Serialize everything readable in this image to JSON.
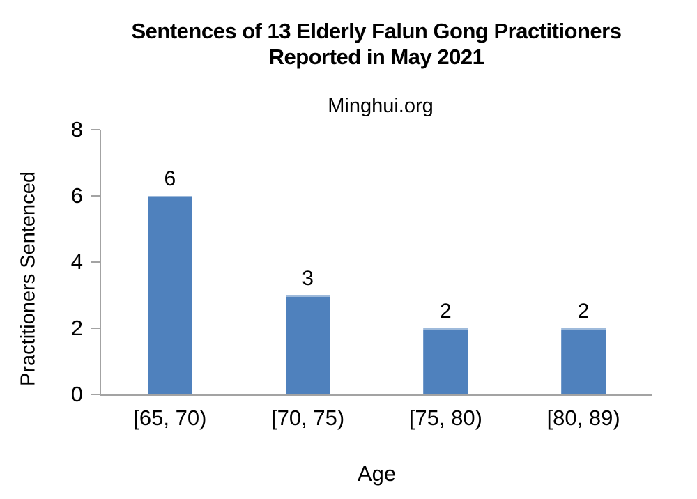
{
  "title": {
    "line1": "Sentences of 13 Elderly Falun Gong Practitioners",
    "line2": "Reported in May 2021"
  },
  "subtitle": "Minghui.org",
  "chart_data": {
    "type": "bar",
    "title": "Sentences of 13 Elderly Falun Gong Practitioners Reported in May 2021",
    "subtitle": "Minghui.org",
    "categories": [
      "[65, 70)",
      "[70, 75)",
      "[75, 80)",
      "[80, 89)"
    ],
    "values": [
      6,
      3,
      2,
      2
    ],
    "xlabel": "Age",
    "ylabel": "Practitioners Sentenced",
    "ylim": [
      0,
      8
    ],
    "yticks": [
      0,
      2,
      4,
      6,
      8
    ],
    "data_labels": true,
    "grid": false,
    "legend": false,
    "colors": {
      "bar": "#4F81BD",
      "axis": "#A3A3A3",
      "text": "#000000",
      "background": "#FFFFFF"
    }
  }
}
